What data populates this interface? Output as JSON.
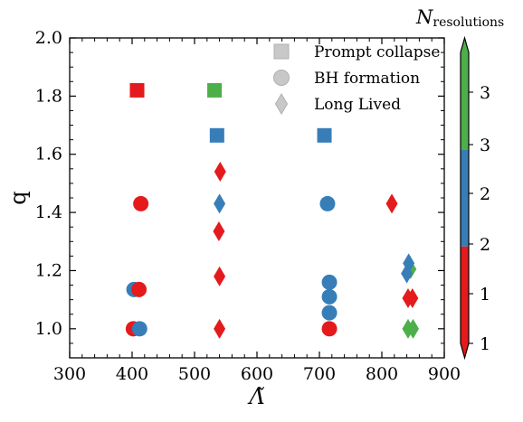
{
  "chart_data": {
    "type": "scatter",
    "title": "",
    "xlabel": "Λ̃",
    "ylabel": "q",
    "xlim": [
      300,
      900
    ],
    "ylim": [
      0.9,
      2.0
    ],
    "xticks": [
      "300",
      "400",
      "500",
      "600",
      "700",
      "800",
      "900"
    ],
    "yticks": [
      "1.0",
      "1.2",
      "1.4",
      "1.6",
      "1.8",
      "2.0"
    ],
    "x_tick_values": [
      300,
      400,
      500,
      600,
      700,
      800,
      900
    ],
    "y_tick_values": [
      1.0,
      1.2,
      1.4,
      1.6,
      1.8,
      2.0
    ],
    "grid": false,
    "legend_position": "top-right",
    "legend": [
      {
        "marker": "square",
        "label": "Prompt collapse"
      },
      {
        "marker": "circle",
        "label": "BH formation"
      },
      {
        "marker": "diamond",
        "label": "Long Lived"
      }
    ],
    "colorbar": {
      "title": "N",
      "title_sub": "resolutions",
      "tick_labels": [
        "1",
        "1",
        "2",
        "2",
        "3",
        "3"
      ],
      "segments": [
        {
          "value": 1,
          "color": "#e41a1c"
        },
        {
          "value": 2,
          "color": "#377eb8"
        },
        {
          "value": 3,
          "color": "#4daf4a"
        }
      ]
    },
    "colors": {
      "1": "#e41a1c",
      "2": "#377eb8",
      "3": "#4daf4a",
      "legend": "#c8c8c8"
    },
    "points": [
      {
        "x": 408,
        "y": 1.82,
        "marker": "square",
        "n": 1
      },
      {
        "x": 532,
        "y": 1.82,
        "marker": "square",
        "n": 3
      },
      {
        "x": 536,
        "y": 1.665,
        "marker": "square",
        "n": 2
      },
      {
        "x": 708,
        "y": 1.665,
        "marker": "square",
        "n": 2
      },
      {
        "x": 541,
        "y": 1.54,
        "marker": "diamond",
        "n": 1
      },
      {
        "x": 414,
        "y": 1.43,
        "marker": "circle",
        "n": 1
      },
      {
        "x": 540,
        "y": 1.43,
        "marker": "diamond",
        "n": 2
      },
      {
        "x": 713,
        "y": 1.43,
        "marker": "circle",
        "n": 2
      },
      {
        "x": 816,
        "y": 1.43,
        "marker": "diamond",
        "n": 1
      },
      {
        "x": 539,
        "y": 1.335,
        "marker": "diamond",
        "n": 1
      },
      {
        "x": 846,
        "y": 1.205,
        "marker": "diamond",
        "n": 3
      },
      {
        "x": 843,
        "y": 1.225,
        "marker": "diamond",
        "n": 2
      },
      {
        "x": 840,
        "y": 1.19,
        "marker": "diamond",
        "n": 2
      },
      {
        "x": 540,
        "y": 1.18,
        "marker": "diamond",
        "n": 1
      },
      {
        "x": 716,
        "y": 1.16,
        "marker": "circle",
        "n": 2
      },
      {
        "x": 403,
        "y": 1.135,
        "marker": "circle",
        "n": 2
      },
      {
        "x": 411,
        "y": 1.135,
        "marker": "circle",
        "n": 1
      },
      {
        "x": 716,
        "y": 1.11,
        "marker": "circle",
        "n": 2
      },
      {
        "x": 842,
        "y": 1.105,
        "marker": "diamond",
        "n": 1
      },
      {
        "x": 849,
        "y": 1.105,
        "marker": "diamond",
        "n": 1
      },
      {
        "x": 716,
        "y": 1.055,
        "marker": "circle",
        "n": 2
      },
      {
        "x": 402,
        "y": 1.0,
        "marker": "circle",
        "n": 1
      },
      {
        "x": 412,
        "y": 1.0,
        "marker": "circle",
        "n": 2
      },
      {
        "x": 540,
        "y": 1.0,
        "marker": "diamond",
        "n": 1
      },
      {
        "x": 716,
        "y": 1.0,
        "marker": "circle",
        "n": 1
      },
      {
        "x": 842,
        "y": 1.0,
        "marker": "diamond",
        "n": 3
      },
      {
        "x": 850,
        "y": 1.0,
        "marker": "diamond",
        "n": 3
      }
    ]
  }
}
